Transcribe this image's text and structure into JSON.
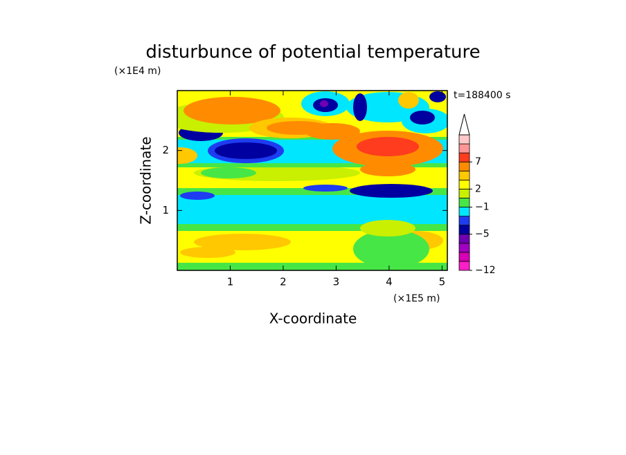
{
  "chart_data": {
    "type": "contour",
    "title": "disturbunce of potential temperature",
    "xlabel": "X-coordinate",
    "ylabel": "Z-coordinate",
    "xunit": "(×1E5 m)",
    "yunit": "(×1E4 m)",
    "annotation": "t=188400 s",
    "xlim": [
      0,
      5.1
    ],
    "ylim": [
      0,
      3
    ],
    "xticks": [
      1,
      2,
      3,
      4,
      5
    ],
    "yticks": [
      1,
      2
    ],
    "colorbar": {
      "levels": [
        -12,
        -10,
        -8,
        -7,
        -5,
        -3,
        -2,
        -1,
        1,
        2,
        3,
        5,
        7,
        9,
        11,
        13
      ],
      "ticks": [
        -12,
        -5,
        -1,
        2,
        7
      ],
      "colors": [
        "#ff1ec8",
        "#d700b4",
        "#a000c0",
        "#6e00b4",
        "#0000a0",
        "#1e3cf0",
        "#00e6ff",
        "#46e646",
        "#c8f000",
        "#ffff00",
        "#ffc800",
        "#ff8c00",
        "#ff3c1e",
        "#ff9696",
        "#ffc8c8"
      ],
      "extend": "max"
    }
  }
}
